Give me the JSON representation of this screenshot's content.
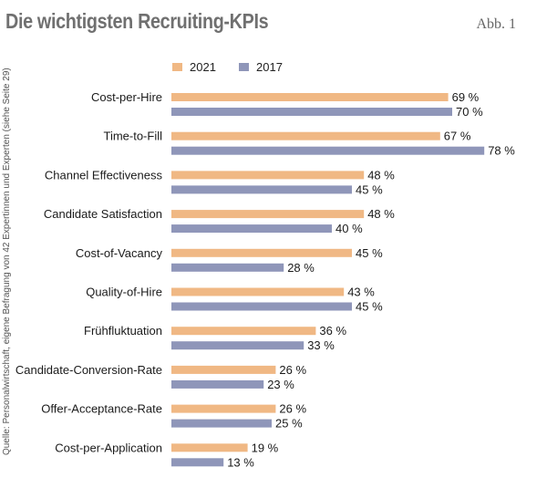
{
  "header": {
    "title": "Die wichtigsten Recruiting-KPIs",
    "figure_ref": "Abb. 1"
  },
  "source_note": "Quelle: Personalwirtschaft, eigene Befragung von 42 Expertinnen und Experten (siehe Seite 29)",
  "colors": {
    "2021": "#F0B884",
    "2017": "#8F96B9"
  },
  "chart_data": {
    "type": "bar",
    "orientation": "horizontal",
    "title": "Die wichtigsten Recruiting-KPIs",
    "unit": "%",
    "xlim": [
      0,
      100
    ],
    "grid": false,
    "legend_position": "top",
    "categories": [
      "Cost-per-Hire",
      "Time-to-Fill",
      "Channel Effectiveness",
      "Candidate Satisfaction",
      "Cost-of-Vacancy",
      "Quality-of-Hire",
      "Frühfluktuation",
      "Candidate-Conversion-Rate",
      "Offer-Acceptance-Rate",
      "Cost-per-Application"
    ],
    "series": [
      {
        "name": "2021",
        "color": "#F0B884",
        "values": [
          69,
          67,
          48,
          48,
          45,
          43,
          36,
          26,
          26,
          19
        ]
      },
      {
        "name": "2017",
        "color": "#8F96B9",
        "values": [
          70,
          78,
          45,
          40,
          28,
          45,
          33,
          23,
          25,
          13
        ]
      }
    ]
  }
}
